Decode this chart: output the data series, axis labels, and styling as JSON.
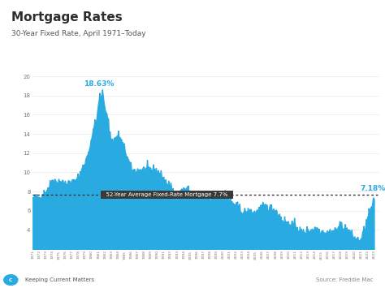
{
  "title": "Mortgage Rates",
  "subtitle": "30-Year Fixed Rate, April 1971–Today",
  "ylim": [
    2,
    20
  ],
  "yticks": [
    4,
    6,
    8,
    10,
    12,
    14,
    16,
    18,
    20
  ],
  "avg_rate": 7.7,
  "avg_label": "52-Year Average Fixed-Rate Mortgage 7.7%",
  "peak_value": 18.63,
  "peak_label": "18.63%",
  "current_value": 7.18,
  "current_label": "7.18%",
  "fill_color": "#29abe2",
  "avg_line_color": "#333333",
  "peak_label_color": "#29abe2",
  "current_label_color": "#29abe2",
  "bg_color": "#ffffff",
  "top_bar_color": "#29abe2",
  "title_color": "#2d2d2d",
  "subtitle_color": "#555555",
  "source_text": "Source: Freddie Mac",
  "brand_text": "Keeping Current Matters",
  "footer_color": "#888888",
  "grid_color": "#e8e8e8"
}
